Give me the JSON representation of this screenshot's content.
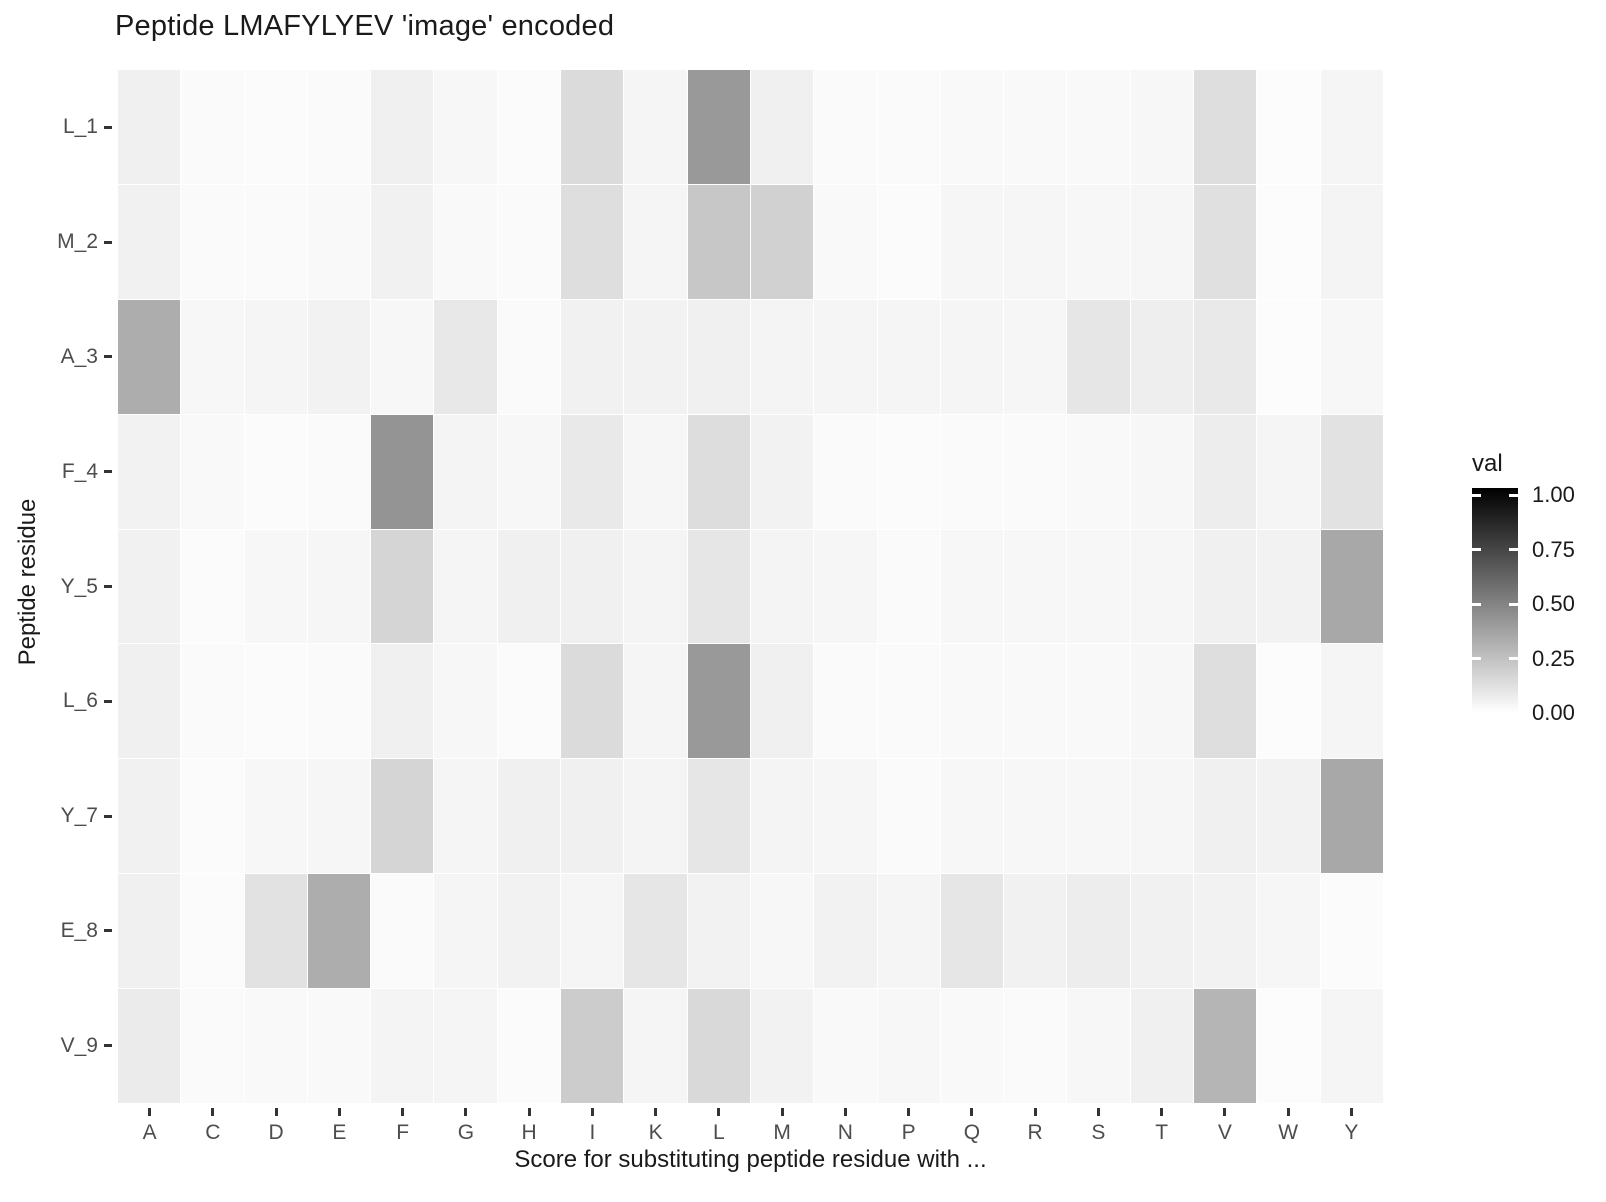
{
  "title": "Peptide LMAFYLYEV 'image' encoded",
  "chart_data": {
    "type": "heatmap",
    "title": "Peptide LMAFYLYEV 'image' encoded",
    "xlabel": "Score for substituting peptide residue with ...",
    "ylabel": "Peptide residue",
    "x_categories": [
      "A",
      "C",
      "D",
      "E",
      "F",
      "G",
      "H",
      "I",
      "K",
      "L",
      "M",
      "N",
      "P",
      "Q",
      "R",
      "S",
      "T",
      "V",
      "W",
      "Y"
    ],
    "y_categories": [
      "L_1",
      "M_2",
      "A_3",
      "F_4",
      "Y_5",
      "L_6",
      "Y_7",
      "E_8",
      "V_9"
    ],
    "values": [
      [
        0.06,
        0.02,
        0.015,
        0.02,
        0.06,
        0.03,
        0.015,
        0.14,
        0.04,
        0.4,
        0.06,
        0.02,
        0.02,
        0.025,
        0.025,
        0.025,
        0.03,
        0.13,
        0.01,
        0.04
      ],
      [
        0.055,
        0.02,
        0.02,
        0.025,
        0.055,
        0.025,
        0.02,
        0.13,
        0.04,
        0.22,
        0.18,
        0.025,
        0.015,
        0.035,
        0.035,
        0.03,
        0.035,
        0.12,
        0.01,
        0.045
      ],
      [
        0.32,
        0.03,
        0.04,
        0.05,
        0.03,
        0.09,
        0.02,
        0.055,
        0.05,
        0.06,
        0.045,
        0.04,
        0.04,
        0.04,
        0.035,
        0.1,
        0.065,
        0.085,
        0.01,
        0.03
      ],
      [
        0.05,
        0.025,
        0.015,
        0.02,
        0.42,
        0.045,
        0.03,
        0.085,
        0.035,
        0.135,
        0.05,
        0.02,
        0.015,
        0.02,
        0.02,
        0.025,
        0.03,
        0.07,
        0.04,
        0.115
      ],
      [
        0.055,
        0.015,
        0.03,
        0.035,
        0.165,
        0.04,
        0.06,
        0.06,
        0.045,
        0.1,
        0.045,
        0.035,
        0.02,
        0.03,
        0.03,
        0.03,
        0.035,
        0.06,
        0.05,
        0.34
      ],
      [
        0.06,
        0.02,
        0.015,
        0.02,
        0.06,
        0.03,
        0.015,
        0.14,
        0.04,
        0.4,
        0.06,
        0.02,
        0.02,
        0.025,
        0.025,
        0.025,
        0.03,
        0.13,
        0.01,
        0.04
      ],
      [
        0.055,
        0.015,
        0.03,
        0.035,
        0.165,
        0.04,
        0.06,
        0.06,
        0.045,
        0.1,
        0.045,
        0.035,
        0.02,
        0.03,
        0.03,
        0.03,
        0.035,
        0.06,
        0.05,
        0.34
      ],
      [
        0.06,
        0.015,
        0.115,
        0.32,
        0.02,
        0.04,
        0.05,
        0.04,
        0.1,
        0.05,
        0.03,
        0.05,
        0.04,
        0.1,
        0.055,
        0.07,
        0.055,
        0.05,
        0.035,
        0.015
      ],
      [
        0.08,
        0.02,
        0.025,
        0.025,
        0.045,
        0.04,
        0.015,
        0.2,
        0.04,
        0.15,
        0.05,
        0.025,
        0.03,
        0.025,
        0.02,
        0.03,
        0.06,
        0.29,
        0.01,
        0.04
      ]
    ],
    "value_range": [
      0.0,
      1.0
    ],
    "color_low": "#FFFFFF",
    "color_high": "#000000",
    "grid": false,
    "legend": {
      "title": "val",
      "tick_labels": [
        "1.00",
        "0.75",
        "0.50",
        "0.25",
        "0.00"
      ],
      "tick_values": [
        1.0,
        0.75,
        0.5,
        0.25,
        0.0
      ],
      "position": "right"
    }
  }
}
